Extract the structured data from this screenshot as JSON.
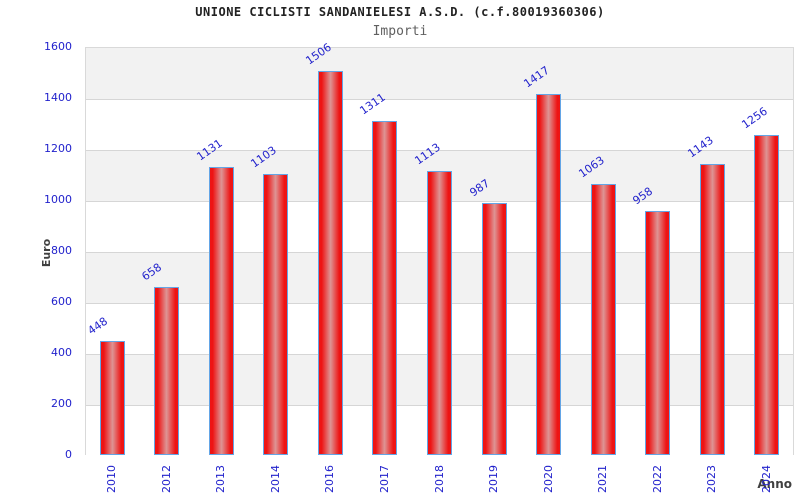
{
  "chart_data": {
    "type": "bar",
    "title": "UNIONE CICLISTI SANDANIELESI A.S.D. (c.f.80019360306)",
    "subtitle": "Importi",
    "xlabel": "Anno",
    "ylabel": "Euro",
    "categories": [
      "2010",
      "2012",
      "2013",
      "2014",
      "2016",
      "2017",
      "2018",
      "2019",
      "2020",
      "2021",
      "2022",
      "2023",
      "2024"
    ],
    "values": [
      448,
      658,
      1131,
      1103,
      1506,
      1311,
      1113,
      987,
      1417,
      1063,
      958,
      1143,
      1256
    ],
    "ylim": [
      0,
      1600
    ],
    "ytick_step": 200,
    "yticks": [
      0,
      200,
      400,
      600,
      800,
      1000,
      1200,
      1400,
      1600
    ],
    "grid": true,
    "legend_position": "none",
    "value_labels_rotated": true,
    "colors": {
      "bar_fill_edge": "#ee1414",
      "bar_fill_center": "#dd9595",
      "bar_border": "#63a5e6",
      "tick_label": "#2222cc",
      "value_label": "#2222cc",
      "band_gray": "#f2f2f2",
      "band_white": "#ffffff",
      "gridline": "#d6d6d6",
      "axis_title": "#404040",
      "title": "#222222",
      "subtitle": "#606060"
    }
  }
}
